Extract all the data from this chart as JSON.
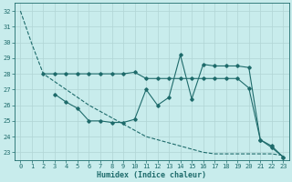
{
  "xlabel": "Humidex (Indice chaleur)",
  "background_color": "#c8ecec",
  "grid_color": "#b0d4d4",
  "line_color": "#1e6b6b",
  "xlim": [
    -0.5,
    23.5
  ],
  "ylim": [
    22.5,
    32.5
  ],
  "yticks": [
    23,
    24,
    25,
    26,
    27,
    28,
    29,
    30,
    31,
    32
  ],
  "xticks": [
    0,
    1,
    2,
    3,
    4,
    5,
    6,
    7,
    8,
    9,
    10,
    11,
    12,
    13,
    14,
    15,
    16,
    17,
    18,
    19,
    20,
    21,
    22,
    23
  ],
  "line1_x": [
    0,
    1,
    2,
    3,
    4,
    5,
    6,
    7,
    8,
    9,
    10,
    11,
    12,
    13,
    14,
    15,
    16,
    17,
    18,
    19,
    20,
    21,
    22,
    23
  ],
  "line1_y": [
    32.0,
    29.9,
    28.0,
    27.5,
    27.0,
    26.5,
    26.0,
    25.6,
    25.2,
    24.8,
    24.4,
    24.0,
    23.8,
    23.6,
    23.4,
    23.2,
    23.0,
    22.9,
    22.9,
    22.9,
    22.9,
    22.9,
    22.9,
    22.8
  ],
  "line2_x": [
    2,
    3,
    4,
    5,
    6,
    7,
    8,
    9,
    10,
    11,
    12,
    13,
    14,
    15,
    16,
    17,
    18,
    19,
    20,
    21,
    22,
    23
  ],
  "line2_y": [
    28.0,
    28.0,
    28.0,
    28.0,
    28.0,
    28.0,
    28.0,
    28.0,
    28.1,
    27.7,
    27.7,
    27.7,
    27.7,
    27.7,
    27.7,
    27.7,
    27.7,
    27.7,
    27.1,
    23.8,
    23.3,
    22.7
  ],
  "line3_x": [
    3,
    4,
    5,
    6,
    7,
    8,
    9,
    10,
    11,
    12,
    13,
    14,
    15,
    16,
    17,
    18,
    19,
    20,
    21,
    22,
    23
  ],
  "line3_y": [
    26.7,
    26.2,
    25.8,
    25.0,
    25.0,
    24.9,
    24.9,
    25.1,
    27.0,
    26.0,
    26.5,
    29.2,
    26.4,
    28.6,
    28.5,
    28.5,
    28.5,
    28.4,
    23.8,
    23.4,
    22.7
  ]
}
